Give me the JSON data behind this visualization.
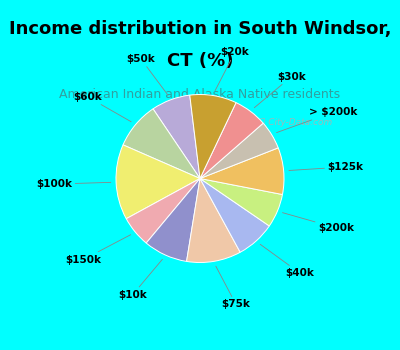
{
  "title_line1": "Income distribution in South Windsor,",
  "title_line2": "CT (%)",
  "subtitle": "American Indian and Alaska Native residents",
  "bg_top": "#00FFFF",
  "bg_chart": "#d8ede4",
  "watermark": "ⓘ City-Data.com",
  "slices": [
    {
      "label": "$50k",
      "value": 7.5,
      "color": "#b8aad8"
    },
    {
      "label": "$60k",
      "value": 9.0,
      "color": "#b8d4a0"
    },
    {
      "label": "$100k",
      "value": 14.5,
      "color": "#f0ee70"
    },
    {
      "label": "$150k",
      "value": 6.0,
      "color": "#f0aab0"
    },
    {
      "label": "$10k",
      "value": 8.5,
      "color": "#9090cc"
    },
    {
      "label": "$75k",
      "value": 10.5,
      "color": "#f0c8a8"
    },
    {
      "label": "$40k",
      "value": 7.5,
      "color": "#a8b8f0"
    },
    {
      "label": "$200k",
      "value": 6.5,
      "color": "#c8f080"
    },
    {
      "label": "$125k",
      "value": 9.0,
      "color": "#f0c060"
    },
    {
      "label": "> $200k",
      "value": 5.5,
      "color": "#c8c0b0"
    },
    {
      "label": "$30k",
      "value": 6.5,
      "color": "#f09090"
    },
    {
      "label": "$20k",
      "value": 9.0,
      "color": "#c8a030"
    }
  ],
  "startangle": 97,
  "title_fontsize": 13,
  "subtitle_fontsize": 9,
  "label_fontsize": 7.5,
  "figsize": [
    4.0,
    3.5
  ],
  "dpi": 100
}
